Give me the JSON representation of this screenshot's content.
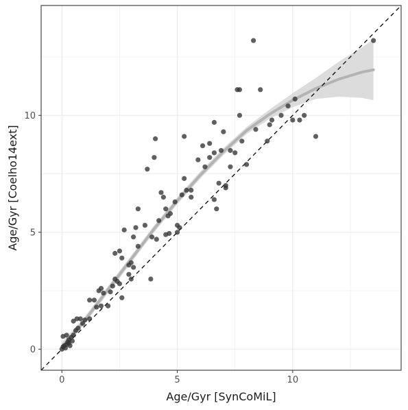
{
  "chart_data": {
    "type": "scatter",
    "xlabel": "Age/Gyr [SynCoMiL]",
    "ylabel": "Age/Gyr [Coelho14ext]",
    "xlim": [
      -0.9,
      14.7
    ],
    "ylim": [
      -0.9,
      14.7
    ],
    "x_ticks": [
      0,
      5,
      10
    ],
    "y_ticks": [
      0,
      5,
      10
    ],
    "grid": true,
    "colors": {
      "point": "#333333",
      "smooth_line": "#b3b3b3",
      "ribbon": "#d6d6d6",
      "identity_line": "#000000",
      "grid": "#ebebeb",
      "panel_border": "#333333"
    },
    "reference_line": {
      "style": "dashed",
      "slope": 1,
      "intercept": 0
    },
    "points": [
      [
        0.0,
        0.0
      ],
      [
        0.05,
        0.1
      ],
      [
        0.1,
        0.15
      ],
      [
        0.15,
        0.05
      ],
      [
        0.2,
        0.2
      ],
      [
        0.25,
        0.3
      ],
      [
        0.3,
        0.25
      ],
      [
        0.05,
        0.55
      ],
      [
        0.2,
        0.6
      ],
      [
        0.3,
        0.4
      ],
      [
        0.4,
        0.5
      ],
      [
        0.45,
        0.35
      ],
      [
        0.5,
        0.6
      ],
      [
        0.35,
        0.15
      ],
      [
        0.5,
        1.2
      ],
      [
        0.6,
        0.8
      ],
      [
        0.7,
        0.9
      ],
      [
        0.8,
        1.3
      ],
      [
        0.9,
        1.1
      ],
      [
        0.65,
        1.3
      ],
      [
        1.0,
        1.25
      ],
      [
        1.2,
        1.3
      ],
      [
        1.2,
        2.1
      ],
      [
        1.4,
        2.1
      ],
      [
        1.5,
        1.8
      ],
      [
        1.6,
        2.5
      ],
      [
        1.7,
        2.6
      ],
      [
        1.8,
        2.4
      ],
      [
        1.7,
        1.85
      ],
      [
        2.0,
        1.85
      ],
      [
        2.1,
        2.45
      ],
      [
        2.2,
        2.7
      ],
      [
        2.3,
        3.0
      ],
      [
        2.4,
        2.9
      ],
      [
        2.5,
        2.8
      ],
      [
        2.3,
        4.1
      ],
      [
        2.5,
        4.2
      ],
      [
        2.6,
        3.9
      ],
      [
        2.6,
        2.2
      ],
      [
        2.7,
        5.1
      ],
      [
        2.9,
        3.2
      ],
      [
        2.9,
        3.6
      ],
      [
        3.0,
        3.7
      ],
      [
        3.1,
        3.5
      ],
      [
        3.0,
        3.0
      ],
      [
        3.1,
        4.8
      ],
      [
        3.2,
        5.2
      ],
      [
        3.3,
        6.0
      ],
      [
        3.3,
        4.4
      ],
      [
        3.6,
        5.3
      ],
      [
        3.7,
        7.7
      ],
      [
        3.85,
        3.0
      ],
      [
        3.9,
        4.8
      ],
      [
        4.0,
        8.2
      ],
      [
        4.05,
        9.0
      ],
      [
        4.1,
        4.7
      ],
      [
        4.2,
        5.5
      ],
      [
        4.3,
        6.7
      ],
      [
        4.4,
        6.5
      ],
      [
        4.5,
        6.0
      ],
      [
        4.5,
        4.9
      ],
      [
        4.6,
        5.7
      ],
      [
        4.65,
        4.95
      ],
      [
        4.7,
        5.8
      ],
      [
        4.9,
        6.3
      ],
      [
        5.0,
        5.0
      ],
      [
        5.0,
        5.3
      ],
      [
        5.1,
        5.2
      ],
      [
        5.2,
        6.6
      ],
      [
        5.3,
        7.3
      ],
      [
        5.3,
        9.1
      ],
      [
        5.4,
        6.8
      ],
      [
        5.6,
        6.5
      ],
      [
        5.6,
        6.8
      ],
      [
        5.9,
        8.1
      ],
      [
        6.1,
        8.7
      ],
      [
        6.2,
        7.8
      ],
      [
        6.4,
        8.8
      ],
      [
        6.4,
        8.2
      ],
      [
        6.6,
        9.7
      ],
      [
        6.6,
        8.4
      ],
      [
        6.6,
        6.4
      ],
      [
        6.7,
        6.0
      ],
      [
        6.8,
        7.1
      ],
      [
        6.9,
        8.5
      ],
      [
        7.0,
        9.3
      ],
      [
        7.1,
        7.0
      ],
      [
        7.1,
        6.9
      ],
      [
        7.3,
        7.8
      ],
      [
        7.3,
        8.5
      ],
      [
        7.5,
        8.4
      ],
      [
        7.6,
        11.1
      ],
      [
        7.7,
        10.0
      ],
      [
        7.7,
        11.1
      ],
      [
        7.8,
        8.9
      ],
      [
        8.0,
        7.9
      ],
      [
        8.3,
        13.2
      ],
      [
        8.4,
        9.4
      ],
      [
        8.6,
        11.1
      ],
      [
        8.9,
        8.9
      ],
      [
        9.0,
        9.6
      ],
      [
        9.1,
        9.8
      ],
      [
        9.5,
        10.0
      ],
      [
        9.8,
        10.4
      ],
      [
        10.0,
        9.8
      ],
      [
        10.1,
        10.7
      ],
      [
        10.3,
        9.8
      ],
      [
        10.5,
        10.0
      ],
      [
        11.0,
        9.1
      ],
      [
        13.5,
        13.2
      ]
    ],
    "smooth_fit": [
      [
        0.0,
        0.1
      ],
      [
        1.0,
        1.25
      ],
      [
        2.0,
        2.55
      ],
      [
        3.0,
        3.85
      ],
      [
        4.0,
        5.15
      ],
      [
        5.0,
        6.35
      ],
      [
        6.0,
        7.45
      ],
      [
        7.0,
        8.45
      ],
      [
        8.0,
        9.35
      ],
      [
        9.0,
        10.05
      ],
      [
        10.0,
        10.65
      ],
      [
        11.0,
        11.15
      ],
      [
        12.0,
        11.55
      ],
      [
        13.0,
        11.85
      ],
      [
        13.5,
        11.95
      ]
    ],
    "ribbon_upper": [
      [
        0.0,
        0.3
      ],
      [
        1.0,
        1.4
      ],
      [
        2.0,
        2.7
      ],
      [
        3.0,
        4.0
      ],
      [
        4.0,
        5.3
      ],
      [
        5.0,
        6.5
      ],
      [
        6.0,
        7.6
      ],
      [
        7.0,
        8.6
      ],
      [
        8.0,
        9.5
      ],
      [
        9.0,
        10.25
      ],
      [
        10.0,
        10.95
      ],
      [
        11.0,
        11.6
      ],
      [
        12.0,
        12.3
      ],
      [
        13.0,
        12.9
      ],
      [
        13.5,
        13.25
      ]
    ],
    "ribbon_lower": [
      [
        0.0,
        -0.1
      ],
      [
        1.0,
        1.1
      ],
      [
        2.0,
        2.4
      ],
      [
        3.0,
        3.7
      ],
      [
        4.0,
        5.0
      ],
      [
        5.0,
        6.2
      ],
      [
        6.0,
        7.3
      ],
      [
        7.0,
        8.3
      ],
      [
        8.0,
        9.2
      ],
      [
        9.0,
        9.85
      ],
      [
        10.0,
        10.35
      ],
      [
        11.0,
        10.7
      ],
      [
        12.0,
        10.8
      ],
      [
        13.0,
        10.75
      ],
      [
        13.5,
        10.65
      ]
    ]
  }
}
